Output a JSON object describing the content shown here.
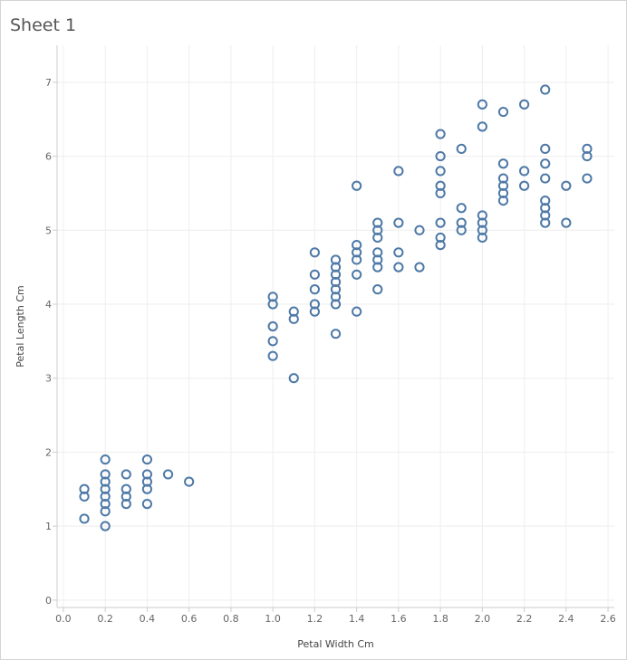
{
  "sheet": {
    "title": "Sheet 1"
  },
  "colors": {
    "marker": "#4e79a7",
    "grid": "#eeeeee",
    "axis": "#cccccc"
  },
  "chart_data": {
    "type": "scatter",
    "title": "",
    "xlabel": "Petal Width Cm",
    "ylabel": "Petal Length Cm",
    "xlim": [
      -0.03,
      2.63
    ],
    "ylim": [
      -0.1,
      7.5
    ],
    "xticks": [
      "0.0",
      "0.2",
      "0.4",
      "0.6",
      "0.8",
      "1.0",
      "1.2",
      "1.4",
      "1.6",
      "1.8",
      "2.0",
      "2.2",
      "2.4",
      "2.6"
    ],
    "yticks": [
      "0",
      "1",
      "2",
      "3",
      "4",
      "5",
      "6",
      "7"
    ],
    "grid": true,
    "marker": "hollow-circle",
    "points": [
      [
        0.1,
        1.5
      ],
      [
        0.1,
        1.4
      ],
      [
        0.1,
        1.1
      ],
      [
        0.2,
        1.9
      ],
      [
        0.2,
        1.7
      ],
      [
        0.2,
        1.6
      ],
      [
        0.2,
        1.5
      ],
      [
        0.2,
        1.4
      ],
      [
        0.2,
        1.3
      ],
      [
        0.2,
        1.2
      ],
      [
        0.2,
        1.0
      ],
      [
        0.3,
        1.7
      ],
      [
        0.3,
        1.5
      ],
      [
        0.3,
        1.4
      ],
      [
        0.3,
        1.3
      ],
      [
        0.4,
        1.9
      ],
      [
        0.4,
        1.7
      ],
      [
        0.4,
        1.6
      ],
      [
        0.4,
        1.5
      ],
      [
        0.4,
        1.3
      ],
      [
        0.5,
        1.7
      ],
      [
        0.6,
        1.6
      ],
      [
        1.0,
        4.1
      ],
      [
        1.0,
        4.0
      ],
      [
        1.0,
        3.7
      ],
      [
        1.0,
        3.5
      ],
      [
        1.0,
        3.3
      ],
      [
        1.1,
        3.9
      ],
      [
        1.1,
        3.8
      ],
      [
        1.1,
        3.0
      ],
      [
        1.2,
        4.7
      ],
      [
        1.2,
        4.4
      ],
      [
        1.2,
        4.2
      ],
      [
        1.2,
        4.0
      ],
      [
        1.2,
        3.9
      ],
      [
        1.3,
        4.6
      ],
      [
        1.3,
        4.5
      ],
      [
        1.3,
        4.4
      ],
      [
        1.3,
        4.3
      ],
      [
        1.3,
        4.2
      ],
      [
        1.3,
        4.1
      ],
      [
        1.3,
        4.0
      ],
      [
        1.3,
        3.6
      ],
      [
        1.4,
        5.6
      ],
      [
        1.4,
        4.8
      ],
      [
        1.4,
        4.7
      ],
      [
        1.4,
        4.6
      ],
      [
        1.4,
        4.4
      ],
      [
        1.4,
        3.9
      ],
      [
        1.5,
        5.1
      ],
      [
        1.5,
        5.0
      ],
      [
        1.5,
        4.9
      ],
      [
        1.5,
        4.7
      ],
      [
        1.5,
        4.6
      ],
      [
        1.5,
        4.5
      ],
      [
        1.5,
        4.2
      ],
      [
        1.6,
        5.8
      ],
      [
        1.6,
        5.1
      ],
      [
        1.6,
        4.7
      ],
      [
        1.6,
        4.5
      ],
      [
        1.7,
        5.0
      ],
      [
        1.7,
        4.5
      ],
      [
        1.8,
        6.3
      ],
      [
        1.8,
        6.0
      ],
      [
        1.8,
        5.8
      ],
      [
        1.8,
        5.6
      ],
      [
        1.8,
        5.5
      ],
      [
        1.8,
        5.1
      ],
      [
        1.8,
        4.9
      ],
      [
        1.8,
        4.8
      ],
      [
        1.9,
        6.1
      ],
      [
        1.9,
        5.3
      ],
      [
        1.9,
        5.1
      ],
      [
        1.9,
        5.0
      ],
      [
        2.0,
        6.7
      ],
      [
        2.0,
        6.4
      ],
      [
        2.0,
        5.2
      ],
      [
        2.0,
        5.1
      ],
      [
        2.0,
        5.0
      ],
      [
        2.0,
        4.9
      ],
      [
        2.1,
        6.6
      ],
      [
        2.1,
        5.9
      ],
      [
        2.1,
        5.7
      ],
      [
        2.1,
        5.6
      ],
      [
        2.1,
        5.5
      ],
      [
        2.1,
        5.4
      ],
      [
        2.2,
        6.7
      ],
      [
        2.2,
        5.8
      ],
      [
        2.2,
        5.6
      ],
      [
        2.3,
        6.9
      ],
      [
        2.3,
        6.1
      ],
      [
        2.3,
        5.9
      ],
      [
        2.3,
        5.7
      ],
      [
        2.3,
        5.4
      ],
      [
        2.3,
        5.3
      ],
      [
        2.3,
        5.2
      ],
      [
        2.3,
        5.1
      ],
      [
        2.4,
        5.6
      ],
      [
        2.4,
        5.1
      ],
      [
        2.5,
        6.1
      ],
      [
        2.5,
        6.0
      ],
      [
        2.5,
        5.7
      ]
    ]
  }
}
